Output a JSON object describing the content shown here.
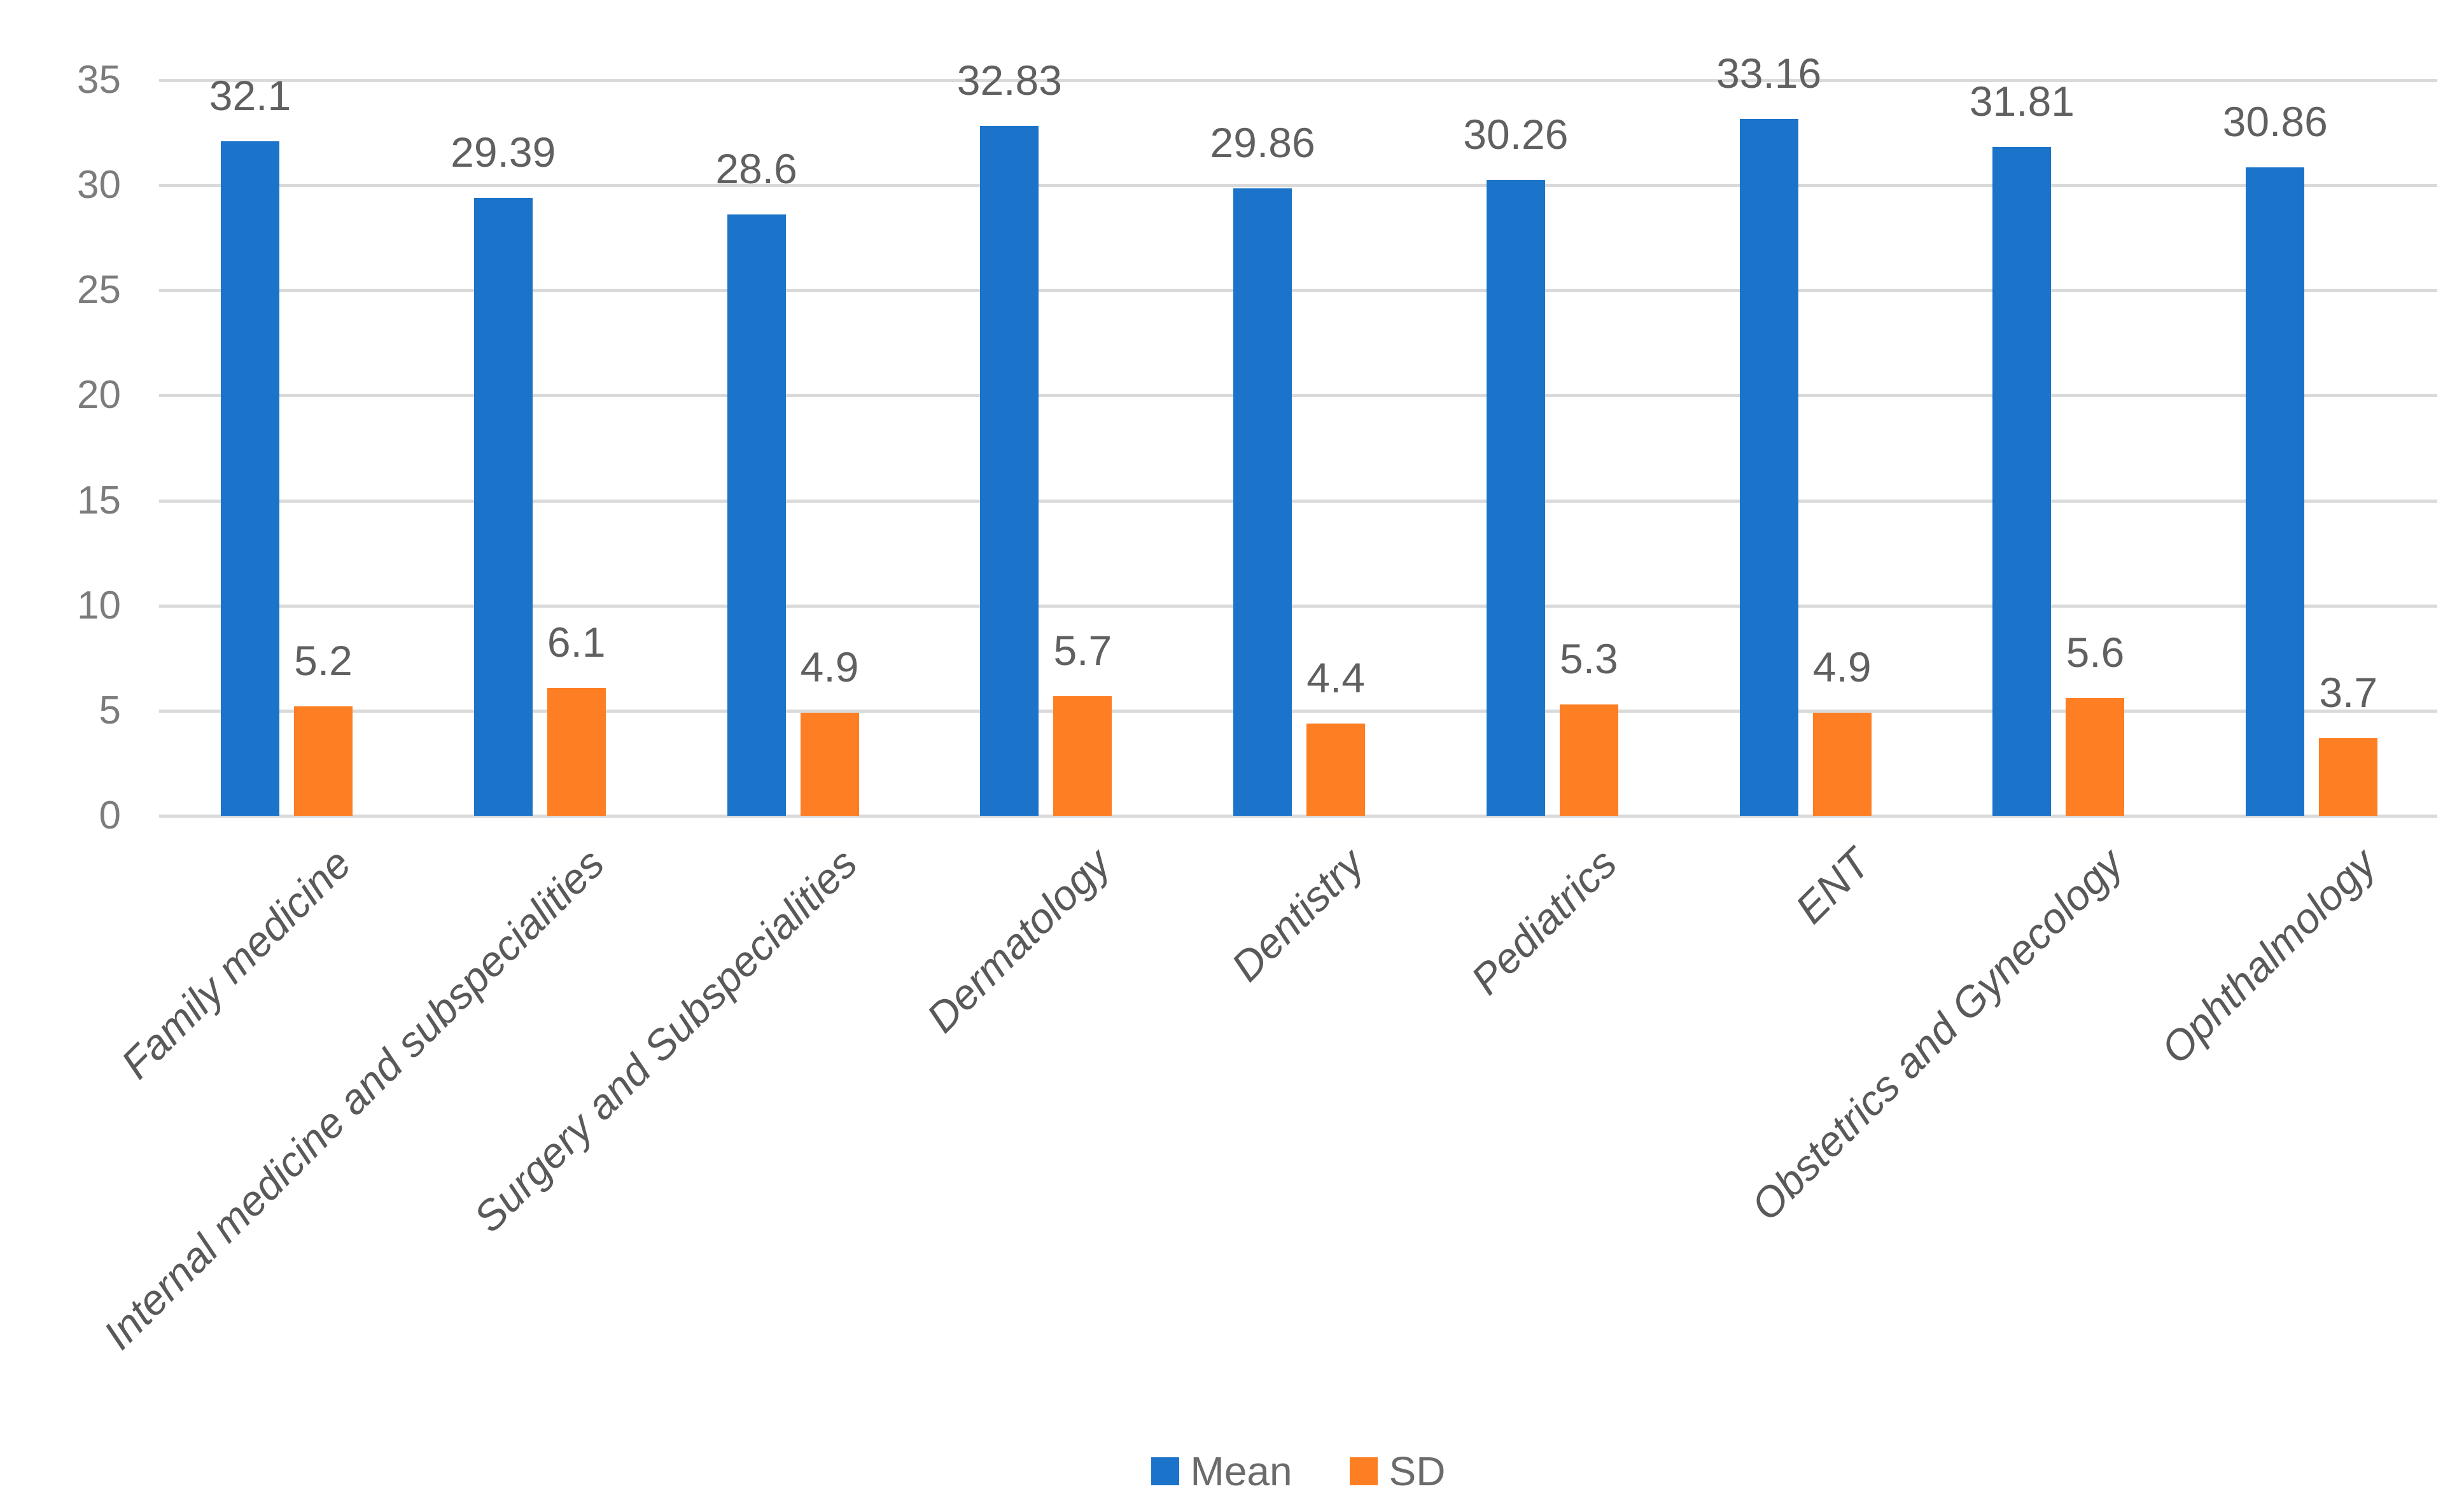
{
  "chart_data": {
    "type": "bar",
    "title": "",
    "xlabel": "",
    "ylabel": "",
    "categories": [
      "Family medicine",
      "Internal medicine and subspecialities",
      "Surgery and Subspecialities",
      "Dermatology",
      "Dentistry",
      "Pediatrics",
      "ENT",
      "Obstetrics and Gynecology",
      "Ophthalmology"
    ],
    "series": [
      {
        "name": "Mean",
        "color": "#1B74C9",
        "values": [
          32.1,
          29.39,
          28.6,
          32.83,
          29.86,
          30.26,
          33.16,
          31.81,
          30.86
        ]
      },
      {
        "name": "SD",
        "color": "#FD7E23",
        "values": [
          5.2,
          6.1,
          4.9,
          5.7,
          4.4,
          5.3,
          4.9,
          5.6,
          3.7
        ]
      }
    ],
    "ylim": [
      0,
      35
    ],
    "yticks": [
      0,
      5,
      10,
      15,
      20,
      25,
      30,
      35
    ],
    "grid": true,
    "legend_position": "bottom",
    "colors": {
      "gridline": "#DADADA",
      "axis_tick_label": "#7C7C7C",
      "value_label": "#606060",
      "category_label": "#595959",
      "legend_label": "#6B6B6B",
      "background": "#FFFFFF"
    }
  }
}
